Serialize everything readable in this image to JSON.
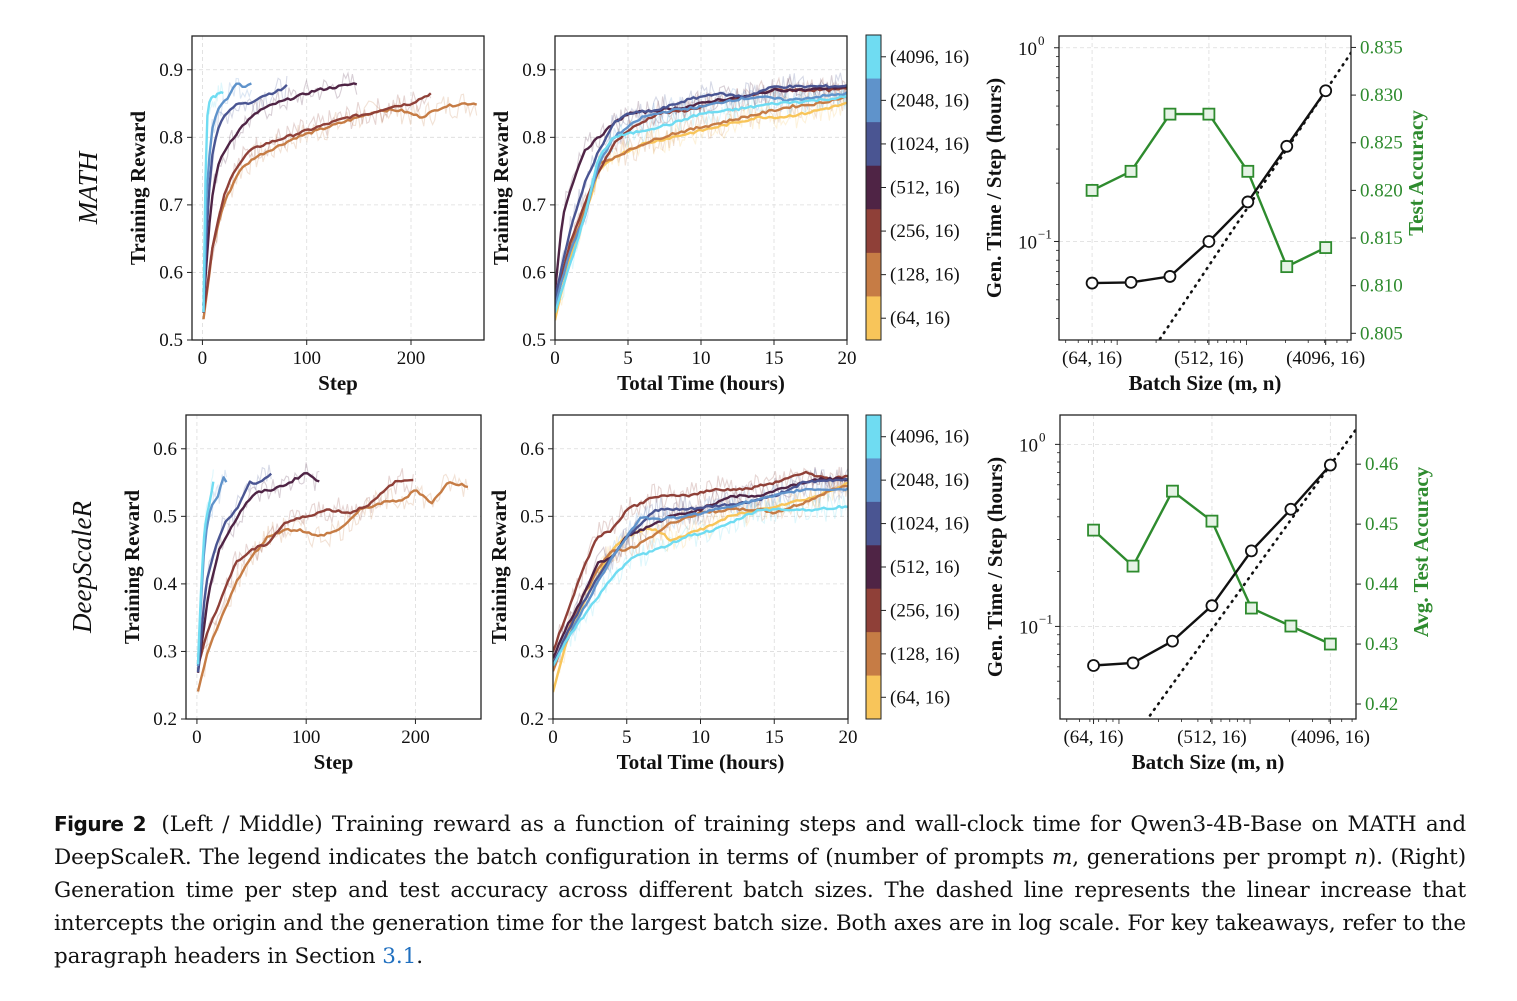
{
  "figure": {
    "label": "Figure 2",
    "caption_parts": {
      "p1": "(Left / Middle) Training reward as a function of training steps and wall-clock time for Qwen3-4B-Base on MATH and DeepScaleR. The legend indicates the batch configuration in terms of (number of prompts ",
      "m": "m",
      "p2": ", generations per prompt ",
      "n": "n",
      "p3": "). (Right) Generation time per step and test accuracy across different batch sizes. The dashed line represents the linear increase that intercepts the origin and the generation time for the largest batch size. Both axes are in log scale. For key takeaways, refer to the paragraph headers in Section ",
      "ref": "3.1",
      "p4": "."
    }
  },
  "legend": {
    "entries": [
      "(4096, 16)",
      "(2048, 16)",
      "(1024, 16)",
      "(512, 16)",
      "(256, 16)",
      "(128, 16)",
      "(64, 16)"
    ],
    "colors": [
      "#6fdcf2",
      "#5f93cb",
      "#4a5592",
      "#4f2445",
      "#8f4038",
      "#c67c45",
      "#f8c55a"
    ]
  },
  "row_labels": [
    "MATH",
    "DeepScaleR"
  ],
  "chart_data": [
    {
      "id": "math-step",
      "type": "line",
      "row_label": "MATH",
      "xlabel": "Step",
      "ylabel": "Training Reward",
      "xlim": [
        -10,
        270
      ],
      "ylim": [
        0.5,
        0.95
      ],
      "xticks": [
        0,
        100,
        200
      ],
      "yticks": [
        0.5,
        0.6,
        0.7,
        0.8,
        0.9
      ],
      "ytick_labels": [
        "0.5",
        "0.6",
        "0.7",
        "0.8",
        "0.9"
      ],
      "grid": true,
      "series": [
        {
          "name": "(4096, 16)",
          "x": [
            1,
            3,
            5,
            8,
            12,
            16,
            20
          ],
          "y": [
            0.54,
            0.75,
            0.84,
            0.86,
            0.86,
            0.865,
            0.865
          ]
        },
        {
          "name": "(2048, 16)",
          "x": [
            1,
            4,
            8,
            12,
            18,
            25,
            32,
            40,
            47
          ],
          "y": [
            0.54,
            0.72,
            0.8,
            0.83,
            0.85,
            0.86,
            0.88,
            0.875,
            0.88
          ]
        },
        {
          "name": "(1024, 16)",
          "x": [
            1,
            5,
            10,
            16,
            25,
            35,
            45,
            55,
            65,
            75,
            81
          ],
          "y": [
            0.55,
            0.7,
            0.78,
            0.82,
            0.84,
            0.85,
            0.85,
            0.86,
            0.865,
            0.87,
            0.877
          ]
        },
        {
          "name": "(512, 16)",
          "x": [
            1,
            8,
            15,
            25,
            40,
            55,
            70,
            90,
            110,
            130,
            148
          ],
          "y": [
            0.55,
            0.7,
            0.76,
            0.79,
            0.82,
            0.84,
            0.85,
            0.86,
            0.87,
            0.875,
            0.88
          ]
        },
        {
          "name": "(256, 16)",
          "x": [
            1,
            10,
            20,
            30,
            45,
            60,
            80,
            100,
            120,
            140,
            160,
            180,
            200,
            219
          ],
          "y": [
            0.54,
            0.64,
            0.71,
            0.75,
            0.78,
            0.79,
            0.8,
            0.81,
            0.82,
            0.83,
            0.835,
            0.845,
            0.85,
            0.865
          ]
        },
        {
          "name": "(128, 16)",
          "x": [
            1,
            10,
            20,
            35,
            50,
            70,
            90,
            110,
            130,
            150,
            170,
            190,
            210,
            230,
            250,
            263
          ],
          "y": [
            0.53,
            0.64,
            0.7,
            0.75,
            0.77,
            0.785,
            0.8,
            0.81,
            0.82,
            0.83,
            0.84,
            0.84,
            0.83,
            0.845,
            0.85,
            0.85
          ]
        }
      ]
    },
    {
      "id": "math-time",
      "type": "line",
      "xlabel": "Total Time (hours)",
      "ylabel": "Training Reward",
      "xlim": [
        0,
        20
      ],
      "ylim": [
        0.5,
        0.95
      ],
      "xticks": [
        0,
        5,
        10,
        15,
        20
      ],
      "yticks": [
        0.5,
        0.6,
        0.7,
        0.8,
        0.9
      ],
      "ytick_labels": [
        "0.5",
        "0.6",
        "0.7",
        "0.8",
        "0.9"
      ],
      "grid": true,
      "series": [
        {
          "name": "(4096, 16)",
          "x": [
            0,
            1,
            2,
            3,
            4,
            6,
            8,
            10,
            12,
            15,
            18,
            20
          ],
          "y": [
            0.54,
            0.61,
            0.68,
            0.77,
            0.8,
            0.81,
            0.82,
            0.835,
            0.84,
            0.85,
            0.855,
            0.86
          ]
        },
        {
          "name": "(2048, 16)",
          "x": [
            0,
            1,
            2,
            3,
            4,
            6,
            8,
            10,
            12,
            14,
            16,
            18,
            20
          ],
          "y": [
            0.55,
            0.63,
            0.68,
            0.76,
            0.8,
            0.83,
            0.84,
            0.845,
            0.855,
            0.86,
            0.855,
            0.86,
            0.865
          ]
        },
        {
          "name": "(1024, 16)",
          "x": [
            0,
            1,
            2,
            3,
            4,
            5,
            7,
            9,
            11,
            13,
            15,
            17,
            20
          ],
          "y": [
            0.56,
            0.66,
            0.73,
            0.78,
            0.82,
            0.835,
            0.84,
            0.855,
            0.865,
            0.86,
            0.875,
            0.875,
            0.876
          ]
        },
        {
          "name": "(512, 16)",
          "x": [
            0,
            0.5,
            1,
            2,
            3,
            4,
            5,
            7,
            9,
            11,
            13,
            15,
            17,
            20
          ],
          "y": [
            0.57,
            0.68,
            0.72,
            0.78,
            0.8,
            0.82,
            0.835,
            0.84,
            0.845,
            0.855,
            0.86,
            0.87,
            0.87,
            0.875
          ]
        },
        {
          "name": "(256, 16)",
          "x": [
            0,
            1,
            2,
            3,
            4,
            5,
            7,
            9,
            11,
            13,
            15,
            17,
            19,
            20
          ],
          "y": [
            0.56,
            0.64,
            0.7,
            0.75,
            0.79,
            0.81,
            0.835,
            0.84,
            0.85,
            0.86,
            0.87,
            0.87,
            0.87,
            0.872
          ]
        },
        {
          "name": "(128, 16)",
          "x": [
            0,
            1,
            2,
            3,
            4,
            6,
            8,
            10,
            12,
            14,
            16,
            18,
            20
          ],
          "y": [
            0.55,
            0.63,
            0.69,
            0.76,
            0.77,
            0.79,
            0.805,
            0.815,
            0.825,
            0.835,
            0.845,
            0.85,
            0.86
          ]
        },
        {
          "name": "(64, 16)",
          "x": [
            0,
            1,
            2,
            3,
            4,
            6,
            8,
            10,
            12,
            14,
            15.5,
            17,
            19,
            20
          ],
          "y": [
            0.53,
            0.62,
            0.68,
            0.75,
            0.77,
            0.79,
            0.8,
            0.81,
            0.82,
            0.83,
            0.83,
            0.835,
            0.845,
            0.85
          ]
        }
      ]
    },
    {
      "id": "math-gen",
      "type": "line",
      "xlabel": "Batch Size (m, n)",
      "ylabel": "Gen. Time / Step (hours)",
      "y2label": "Test Accuracy",
      "xscale": "log2",
      "yscale": "log",
      "categories": [
        "(64, 16)",
        "(128, 16)",
        "(256, 16)",
        "(512, 16)",
        "(1024, 16)",
        "(2048, 16)",
        "(4096, 16)"
      ],
      "xtick_labels": [
        "(64, 16)",
        "(512, 16)",
        "(4096, 16)"
      ],
      "ylim": [
        0.031,
        1.15
      ],
      "yticks": [
        0.1,
        1.0
      ],
      "ytick_labels": [
        "10",
        "10"
      ],
      "ytick_exps": [
        "−1",
        "0"
      ],
      "y2lim": [
        0.8043,
        0.8362
      ],
      "y2ticks": [
        0.805,
        0.81,
        0.815,
        0.82,
        0.825,
        0.83,
        0.835
      ],
      "y2tick_labels": [
        "0.805",
        "0.810",
        "0.815",
        "0.820",
        "0.825",
        "0.830",
        "0.835"
      ],
      "gen_time": [
        0.061,
        0.0615,
        0.066,
        0.1,
        0.16,
        0.31,
        0.6
      ],
      "accuracy": [
        0.82,
        0.822,
        0.828,
        0.828,
        0.822,
        0.812,
        0.814
      ],
      "linear_ref_at_largest": 0.6
    },
    {
      "id": "dsr-step",
      "type": "line",
      "row_label": "DeepScaleR",
      "xlabel": "Step",
      "ylabel": "Training Reward",
      "xlim": [
        -10,
        260
      ],
      "ylim": [
        0.2,
        0.65
      ],
      "xticks": [
        0,
        100,
        200
      ],
      "yticks": [
        0.2,
        0.3,
        0.4,
        0.5,
        0.6
      ],
      "ytick_labels": [
        "0.2",
        "0.3",
        "0.4",
        "0.5",
        "0.6"
      ],
      "grid": true,
      "series": [
        {
          "name": "(4096, 16)",
          "x": [
            1,
            4,
            7,
            10,
            13,
            15
          ],
          "y": [
            0.28,
            0.4,
            0.48,
            0.51,
            0.53,
            0.55
          ]
        },
        {
          "name": "(2048, 16)",
          "x": [
            1,
            5,
            10,
            15,
            20,
            24,
            27
          ],
          "y": [
            0.28,
            0.42,
            0.5,
            0.52,
            0.53,
            0.56,
            0.55
          ]
        },
        {
          "name": "(1024, 16)",
          "x": [
            1,
            8,
            16,
            26,
            36,
            48,
            58,
            68
          ],
          "y": [
            0.27,
            0.4,
            0.45,
            0.49,
            0.51,
            0.55,
            0.55,
            0.565
          ]
        },
        {
          "name": "(512, 16)",
          "x": [
            1,
            10,
            20,
            30,
            45,
            55,
            70,
            85,
            100,
            112
          ],
          "y": [
            0.27,
            0.38,
            0.45,
            0.48,
            0.52,
            0.535,
            0.54,
            0.55,
            0.565,
            0.55
          ]
        },
        {
          "name": "(256, 16)",
          "x": [
            1,
            10,
            20,
            35,
            50,
            65,
            80,
            100,
            120,
            140,
            160,
            180,
            198
          ],
          "y": [
            0.28,
            0.33,
            0.37,
            0.43,
            0.45,
            0.46,
            0.49,
            0.5,
            0.51,
            0.505,
            0.52,
            0.55,
            0.555
          ]
        },
        {
          "name": "(128, 16)",
          "x": [
            1,
            10,
            20,
            35,
            50,
            65,
            80,
            95,
            110,
            130,
            150,
            170,
            190,
            200,
            215,
            230,
            248
          ],
          "y": [
            0.24,
            0.3,
            0.34,
            0.4,
            0.44,
            0.47,
            0.48,
            0.48,
            0.47,
            0.48,
            0.51,
            0.52,
            0.525,
            0.54,
            0.52,
            0.55,
            0.545
          ]
        }
      ]
    },
    {
      "id": "dsr-time",
      "type": "line",
      "xlabel": "Total Time (hours)",
      "ylabel": "Training Reward",
      "xlim": [
        0,
        20
      ],
      "ylim": [
        0.2,
        0.65
      ],
      "xticks": [
        0,
        5,
        10,
        15,
        20
      ],
      "yticks": [
        0.2,
        0.3,
        0.4,
        0.5,
        0.6
      ],
      "ytick_labels": [
        "0.2",
        "0.3",
        "0.4",
        "0.5",
        "0.6"
      ],
      "grid": true,
      "series": [
        {
          "name": "(4096, 16)",
          "x": [
            0,
            1,
            2,
            3,
            4,
            5.5,
            7,
            9,
            11,
            13,
            14,
            16,
            18,
            20
          ],
          "y": [
            0.28,
            0.32,
            0.35,
            0.38,
            0.41,
            0.44,
            0.45,
            0.47,
            0.48,
            0.5,
            0.51,
            0.51,
            0.51,
            0.515
          ]
        },
        {
          "name": "(2048, 16)",
          "x": [
            0,
            1,
            2,
            3,
            4,
            5,
            6,
            7,
            9,
            11,
            13,
            15,
            17,
            20
          ],
          "y": [
            0.28,
            0.32,
            0.36,
            0.4,
            0.44,
            0.47,
            0.5,
            0.495,
            0.5,
            0.51,
            0.52,
            0.53,
            0.54,
            0.54
          ]
        },
        {
          "name": "(1024, 16)",
          "x": [
            0,
            1,
            2,
            3,
            4,
            5,
            6,
            7,
            9,
            11,
            13,
            15,
            17,
            20
          ],
          "y": [
            0.28,
            0.33,
            0.37,
            0.41,
            0.44,
            0.47,
            0.49,
            0.51,
            0.51,
            0.515,
            0.52,
            0.53,
            0.55,
            0.555
          ]
        },
        {
          "name": "(512, 16)",
          "x": [
            0,
            1,
            2,
            3,
            4,
            5,
            6,
            8,
            10,
            12,
            14,
            16,
            18,
            20
          ],
          "y": [
            0.29,
            0.34,
            0.38,
            0.43,
            0.44,
            0.47,
            0.48,
            0.5,
            0.51,
            0.53,
            0.53,
            0.545,
            0.555,
            0.555
          ]
        },
        {
          "name": "(256, 16)",
          "x": [
            0,
            1,
            2,
            3,
            4,
            5,
            6,
            7,
            9,
            11,
            13,
            15,
            17,
            19,
            20
          ],
          "y": [
            0.3,
            0.36,
            0.42,
            0.47,
            0.48,
            0.51,
            0.52,
            0.53,
            0.53,
            0.54,
            0.54,
            0.55,
            0.565,
            0.555,
            0.56
          ]
        },
        {
          "name": "(128, 16)",
          "x": [
            0,
            1,
            2,
            3,
            4,
            5,
            6,
            8,
            10,
            12,
            14,
            15,
            17,
            19,
            20
          ],
          "y": [
            0.27,
            0.33,
            0.38,
            0.42,
            0.45,
            0.45,
            0.46,
            0.49,
            0.505,
            0.51,
            0.51,
            0.505,
            0.52,
            0.54,
            0.545
          ]
        },
        {
          "name": "(64, 16)",
          "x": [
            0,
            1,
            2,
            3,
            4,
            5,
            6,
            7,
            8,
            10,
            12,
            14,
            16,
            18,
            20
          ],
          "y": [
            0.24,
            0.32,
            0.37,
            0.41,
            0.45,
            0.47,
            0.48,
            0.48,
            0.465,
            0.48,
            0.5,
            0.51,
            0.52,
            0.53,
            0.55
          ]
        }
      ]
    },
    {
      "id": "dsr-gen",
      "type": "line",
      "xlabel": "Batch Size (m, n)",
      "ylabel": "Gen. Time / Step (hours)",
      "y2label": "Avg. Test Accuracy",
      "xscale": "log2",
      "yscale": "log",
      "categories": [
        "(64, 16)",
        "(128, 16)",
        "(256, 16)",
        "(512, 16)",
        "(1024, 16)",
        "(2048, 16)",
        "(4096, 16)"
      ],
      "xtick_labels": [
        "(64, 16)",
        "(512, 16)",
        "(4096, 16)"
      ],
      "ylim": [
        0.031,
        1.45
      ],
      "yticks": [
        0.1,
        1.0
      ],
      "ytick_labels": [
        "10",
        "10"
      ],
      "ytick_exps": [
        "−1",
        "0"
      ],
      "y2lim": [
        0.4175,
        0.4682
      ],
      "y2ticks": [
        0.42,
        0.43,
        0.44,
        0.45,
        0.46
      ],
      "y2tick_labels": [
        "0.42",
        "0.43",
        "0.44",
        "0.45",
        "0.46"
      ],
      "gen_time": [
        0.061,
        0.063,
        0.083,
        0.13,
        0.26,
        0.44,
        0.77
      ],
      "accuracy": [
        0.449,
        0.443,
        0.4555,
        0.4505,
        0.436,
        0.433,
        0.43
      ],
      "linear_ref_at_largest": 0.77
    }
  ]
}
